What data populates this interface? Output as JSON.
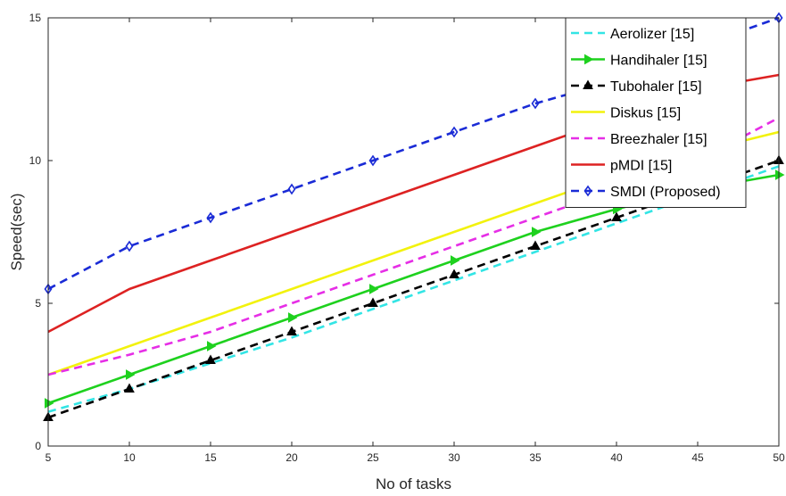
{
  "chart_data": {
    "type": "line",
    "title": "",
    "xlabel": "No of tasks",
    "ylabel": "Speed(sec)",
    "xlim": [
      5,
      50
    ],
    "ylim": [
      0,
      15
    ],
    "x_ticks": [
      5,
      10,
      15,
      20,
      25,
      30,
      35,
      40,
      45,
      50
    ],
    "y_ticks": [
      0,
      5,
      10,
      15
    ],
    "grid": false,
    "legend_position": "top-right",
    "x": [
      5,
      10,
      15,
      20,
      25,
      30,
      35,
      40,
      45,
      50
    ],
    "series": [
      {
        "name": "Aerolizer [15]",
        "color": "#33e5e5",
        "dash": "dashed",
        "marker": "none",
        "values": [
          1.2,
          2.0,
          2.9,
          3.8,
          4.8,
          5.8,
          6.8,
          7.8,
          8.8,
          9.8
        ]
      },
      {
        "name": "Handihaler [15]",
        "color": "#1ed11e",
        "dash": "solid",
        "marker": "triangle-right",
        "values": [
          1.5,
          2.5,
          3.5,
          4.5,
          5.5,
          6.5,
          7.5,
          8.3,
          9.0,
          9.5
        ]
      },
      {
        "name": "Tubohaler [15]",
        "color": "#000000",
        "dash": "dashed",
        "marker": "triangle-up",
        "values": [
          1.0,
          2.0,
          3.0,
          4.0,
          5.0,
          6.0,
          7.0,
          8.0,
          9.0,
          10.0
        ]
      },
      {
        "name": "Diskus [15]",
        "color": "#f2f20d",
        "dash": "solid",
        "marker": "none",
        "values": [
          2.5,
          3.5,
          4.5,
          5.5,
          6.5,
          7.5,
          8.5,
          9.5,
          10.3,
          11.0
        ]
      },
      {
        "name": "Breezhaler [15]",
        "color": "#e62ee6",
        "dash": "dashed",
        "marker": "none",
        "values": [
          2.5,
          3.2,
          4.0,
          5.0,
          6.0,
          7.0,
          8.0,
          9.0,
          10.0,
          11.5
        ]
      },
      {
        "name": "pMDI [15]",
        "color": "#dd2222",
        "dash": "solid",
        "marker": "none",
        "values": [
          4.0,
          5.5,
          6.5,
          7.5,
          8.5,
          9.5,
          10.5,
          11.5,
          12.5,
          13.0
        ]
      },
      {
        "name": "SMDI (Proposed)",
        "color": "#1a2bd6",
        "dash": "dashed",
        "marker": "diamond",
        "values": [
          5.5,
          7.0,
          8.0,
          9.0,
          10.0,
          11.0,
          12.0,
          12.8,
          14.0,
          15.0
        ]
      }
    ]
  }
}
